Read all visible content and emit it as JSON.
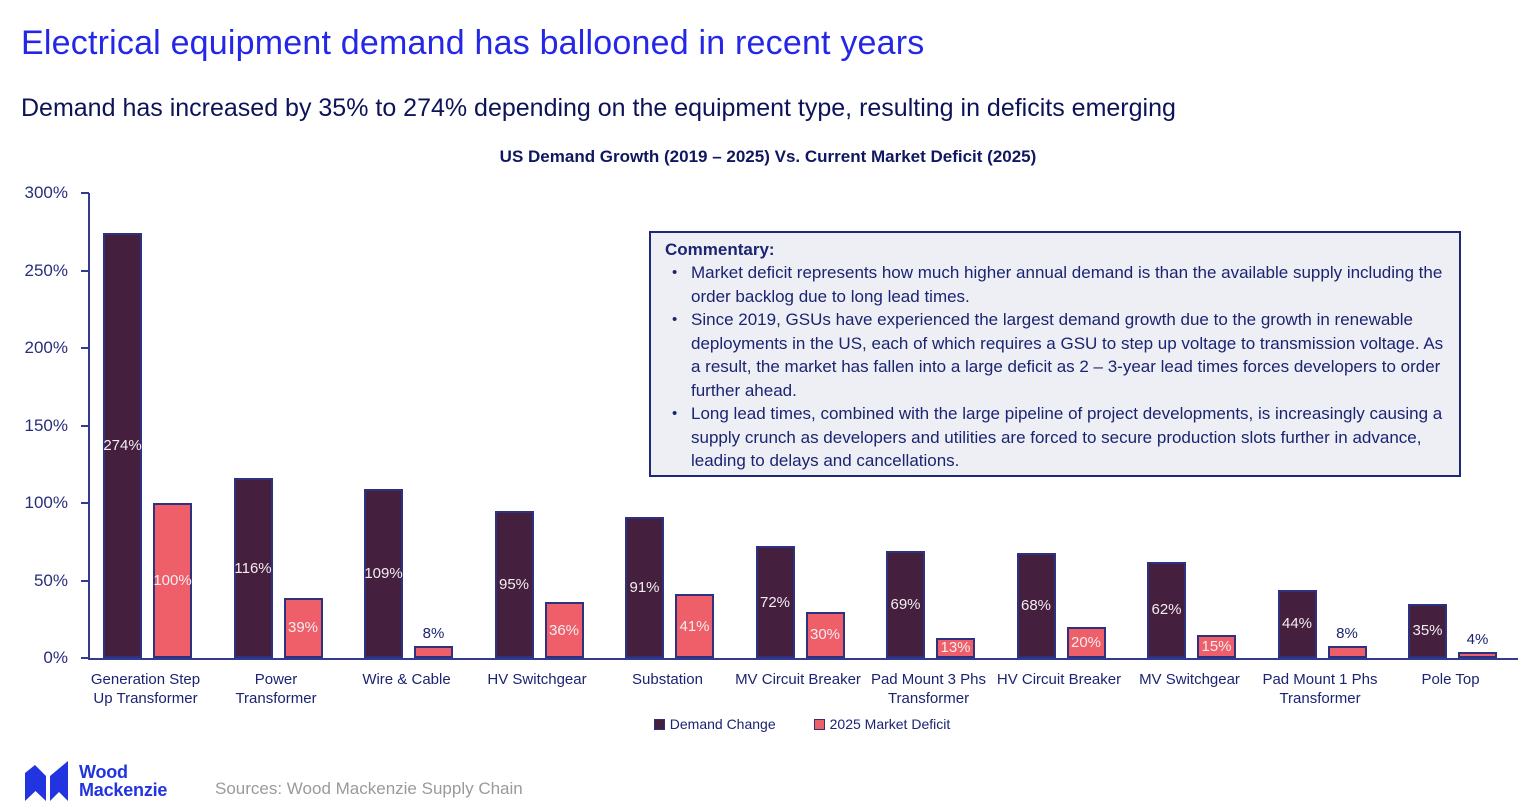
{
  "header": {
    "title": "Electrical equipment demand has ballooned in recent years",
    "subtitle": "Demand has increased by 35% to 274% depending on the equipment type, resulting in deficits emerging"
  },
  "chart_data": {
    "type": "bar",
    "title": "US Demand Growth (2019 – 2025) Vs. Current Market Deficit (2025)",
    "categories": [
      "Generation Step Up Transformer",
      "Power Transformer",
      "Wire & Cable",
      "HV Switchgear",
      "Substation",
      "MV Circuit Breaker",
      "Pad Mount 3 Phs Transformer",
      "HV Circuit Breaker",
      "MV Switchgear",
      "Pad Mount 1 Phs Transformer",
      "Pole Top"
    ],
    "series": [
      {
        "name": "Demand Change",
        "color": "#451f3e",
        "values": [
          274,
          116,
          109,
          95,
          91,
          72,
          69,
          68,
          62,
          44,
          35
        ]
      },
      {
        "name": "2025 Market Deficit",
        "color": "#ef5f69",
        "values": [
          100,
          39,
          8,
          36,
          41,
          30,
          13,
          20,
          15,
          8,
          4
        ]
      }
    ],
    "ylim": [
      0,
      300
    ],
    "yticks": [
      "0%",
      "50%",
      "100%",
      "150%",
      "200%",
      "250%",
      "300%"
    ],
    "value_suffix": "%",
    "grid": false,
    "legend_position": "bottom"
  },
  "commentary": {
    "title": "Commentary:",
    "bullets": [
      "Market deficit represents how much higher annual demand is than the available supply including the order backlog due to long lead times.",
      "Since 2019, GSUs have experienced the largest demand growth due to the growth in renewable deployments in the US, each of which requires a GSU to step up voltage to transmission voltage. As a result, the market has fallen into a large deficit as 2 – 3-year lead times forces developers to order further ahead.",
      "Long lead times, combined with the large pipeline of project developments, is increasingly causing a supply crunch as developers and utilities are forced to secure production slots further in advance, leading to delays and cancellations."
    ]
  },
  "footer": {
    "logo_text_line1": "Wood",
    "logo_text_line2": "Mackenzie",
    "sources": "Sources: Wood Mackenzie Supply Chain"
  },
  "colors": {
    "accent_blue": "#2427e6",
    "navy_text": "#1b2472",
    "demand_bar": "#451f3e",
    "deficit_bar": "#ef5f69",
    "bar_border": "#2c3180",
    "axis": "#333b8f",
    "commentary_bg": "#edeff4",
    "commentary_border": "#1e2878",
    "sources_gray": "#9a9a9a",
    "logo_blue": "#2134e0"
  }
}
